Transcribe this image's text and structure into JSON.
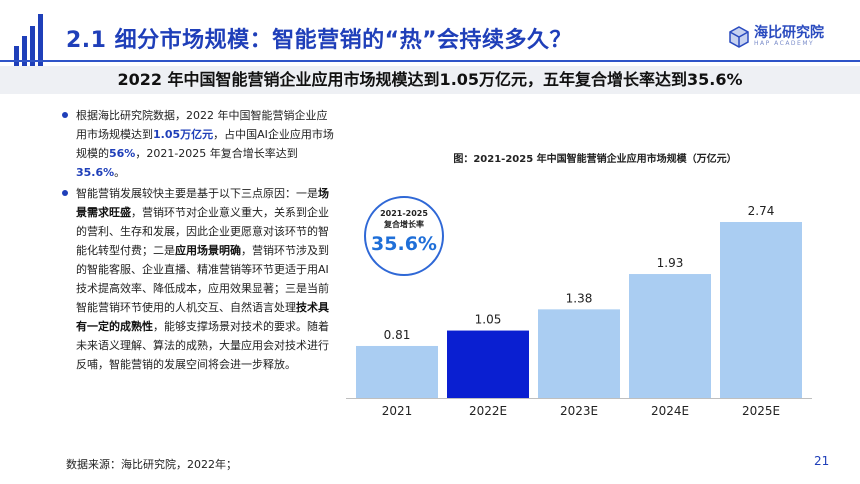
{
  "header": {
    "title": "2.1 细分市场规模：智能营销的“热”会持续多久？",
    "logo_cn": "海比研究院",
    "logo_en": "HAP ACADEMY",
    "subtitle": "2022 年中国智能营销企业应用市场规模达到1.05万亿元，五年复合增长率达到35.6%"
  },
  "bullets": {
    "b1": [
      {
        "t": "根据海比研究院数据，2022 年中国智能营销企业应用市场规模达到",
        "s": "n"
      },
      {
        "t": "1.05万亿元",
        "s": "h"
      },
      {
        "t": "，占中国AI企业应用市场规模的",
        "s": "n"
      },
      {
        "t": "56%",
        "s": "h"
      },
      {
        "t": "，2021-2025 年复合增长率达到",
        "s": "n"
      },
      {
        "t": "35.6%",
        "s": "h"
      },
      {
        "t": "。",
        "s": "n"
      }
    ],
    "b2": [
      {
        "t": "智能营销发展较快主要是基于以下三点原因：一是",
        "s": "n"
      },
      {
        "t": "场景需求旺盛",
        "s": "b"
      },
      {
        "t": "，营销环节对企业意义重大，关系到企业的营利、生存和发展，因此企业更愿意对该环节的智能化转型付费；二是",
        "s": "n"
      },
      {
        "t": "应用场景明确",
        "s": "b"
      },
      {
        "t": "，营销环节涉及到的智能客服、企业直播、精准营销等环节更适于用AI技术提高效率、降低成本，应用效果显著；三是当前智能营销环节使用的人机交互、自然语言处理",
        "s": "n"
      },
      {
        "t": "技术具有一定的成熟性",
        "s": "b"
      },
      {
        "t": "，能够支撑场景对技术的要求。随着未来语义理解、算法的成熟，大量应用会对技术进行反哺，智能营销的发展空间将会进一步释放。",
        "s": "n"
      }
    ]
  },
  "chart_data": {
    "type": "bar",
    "title": "图：2021-2025 年中国智能营销企业应用市场规模（万亿元）",
    "categories": [
      "2021",
      "2022E",
      "2023E",
      "2024E",
      "2025E"
    ],
    "values": [
      0.81,
      1.05,
      1.38,
      1.93,
      2.74
    ],
    "value_labels": [
      "0.81",
      "1.05",
      "1.38",
      "1.93",
      "2.74"
    ],
    "highlight_index": 1,
    "ylim": [
      0,
      2.74
    ],
    "grid": false,
    "colors": {
      "bar": "#aacdf2",
      "highlight": "#0a1fd1"
    }
  },
  "cagr": {
    "label_1": "2021-2025",
    "label_2": "复合增长率",
    "value": "35.6%"
  },
  "footer": {
    "source": "数据来源：海比研究院，2022年；",
    "page": "21"
  }
}
